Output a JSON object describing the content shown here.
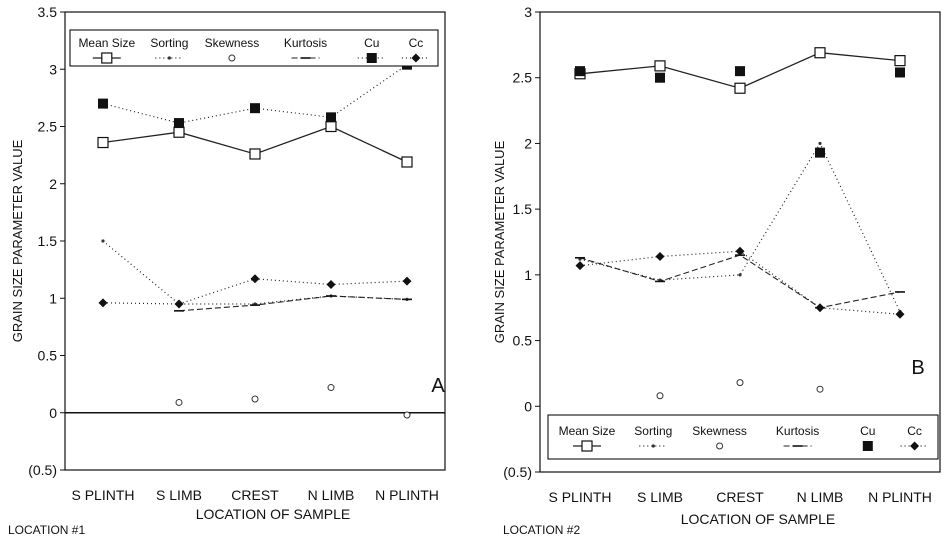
{
  "chart_data": [
    {
      "type": "line",
      "panel_label": "A",
      "location_label": "LOCATION #1",
      "xlabel": "LOCATION OF SAMPLE",
      "ylabel": "GRAIN SIZE PARAMETER VALUE",
      "categories": [
        "S PLINTH",
        "S LIMB",
        "CREST",
        "N LIMB",
        "N PLINTH"
      ],
      "ylim": [
        -0.5,
        3.5
      ],
      "yticks": [
        -0.5,
        0,
        0.5,
        1,
        1.5,
        2,
        2.5,
        3,
        3.5
      ],
      "ytick_labels": [
        "(0.5)",
        "0",
        "0.5",
        "1",
        "1.5",
        "2",
        "2.5",
        "3",
        "3.5"
      ],
      "legend_position": "top",
      "series": [
        {
          "name": "Mean Size",
          "marker": "open-square",
          "line": "solid",
          "values": [
            2.36,
            2.45,
            2.26,
            2.5,
            2.19
          ]
        },
        {
          "name": "Sorting",
          "marker": "dot",
          "line": "dotted",
          "values": [
            1.5,
            0.95,
            0.95,
            1.02,
            0.99
          ]
        },
        {
          "name": "Skewness",
          "marker": "open-circle",
          "line": "none",
          "values": [
            null,
            0.09,
            0.12,
            0.22,
            -0.02
          ]
        },
        {
          "name": "Kurtosis",
          "marker": "dash",
          "line": "dashed",
          "values": [
            null,
            0.89,
            0.94,
            1.02,
            0.99
          ]
        },
        {
          "name": "Cu",
          "marker": "filled-square",
          "line": "dotted",
          "values": [
            2.7,
            2.53,
            2.66,
            2.58,
            3.04
          ]
        },
        {
          "name": "Cc",
          "marker": "filled-diamond",
          "line": "dotted",
          "values": [
            0.96,
            0.95,
            1.17,
            1.12,
            1.15
          ]
        }
      ]
    },
    {
      "type": "line",
      "panel_label": "B",
      "location_label": "LOCATION #2",
      "xlabel": "LOCATION OF SAMPLE",
      "ylabel": "GRAIN SIZE PARAMETER VALUE",
      "categories": [
        "S PLINTH",
        "S LIMB",
        "CREST",
        "N LIMB",
        "N PLINTH"
      ],
      "ylim": [
        -0.5,
        3
      ],
      "yticks": [
        -0.5,
        0,
        0.5,
        1,
        1.5,
        2,
        2.5,
        3
      ],
      "ytick_labels": [
        "(0.5)",
        "0",
        "0.5",
        "1",
        "1.5",
        "2",
        "2.5",
        "3"
      ],
      "legend_position": "bottom",
      "series": [
        {
          "name": "Mean Size",
          "marker": "open-square",
          "line": "solid",
          "values": [
            2.53,
            2.59,
            2.42,
            2.69,
            2.63
          ]
        },
        {
          "name": "Sorting",
          "marker": "dot",
          "line": "dotted",
          "values": [
            1.12,
            0.96,
            1.0,
            2.0,
            0.72
          ]
        },
        {
          "name": "Skewness",
          "marker": "open-circle",
          "line": "none",
          "values": [
            null,
            0.08,
            0.18,
            0.13,
            null
          ]
        },
        {
          "name": "Kurtosis",
          "marker": "dash",
          "line": "dashed",
          "values": [
            1.13,
            0.95,
            1.15,
            0.75,
            0.87
          ]
        },
        {
          "name": "Cu",
          "marker": "filled-square",
          "line": "none",
          "values": [
            2.55,
            2.5,
            2.55,
            1.93,
            2.54
          ]
        },
        {
          "name": "Cc",
          "marker": "filled-diamond",
          "line": "dotted",
          "values": [
            1.07,
            1.14,
            1.18,
            0.75,
            0.7
          ]
        }
      ]
    }
  ]
}
